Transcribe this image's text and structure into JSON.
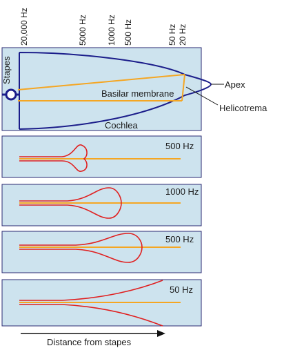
{
  "frequency_axis": [
    "20,000 Hz",
    "5000 Hz",
    "1000 Hz",
    "500 Hz",
    "50 Hz",
    "20 Hz"
  ],
  "labels": {
    "stapes": "Stapes",
    "basilar_membrane": "Basilar membrane",
    "cochlea": "Cochlea",
    "apex": "Apex",
    "helicotrema": "Helicotrema",
    "distance": "Distance from stapes"
  },
  "panels": [
    {
      "label": "500 Hz"
    },
    {
      "label": "1000 Hz"
    },
    {
      "label": "500 Hz"
    },
    {
      "label": "50 Hz"
    }
  ],
  "colors": {
    "panel_fill": "#cde3ee",
    "panel_border": "#2a2a72",
    "cochlea_outline": "#1b1d8a",
    "membrane_line": "#f5a623",
    "wave_line": "#e02020",
    "arrow": "#111111"
  }
}
